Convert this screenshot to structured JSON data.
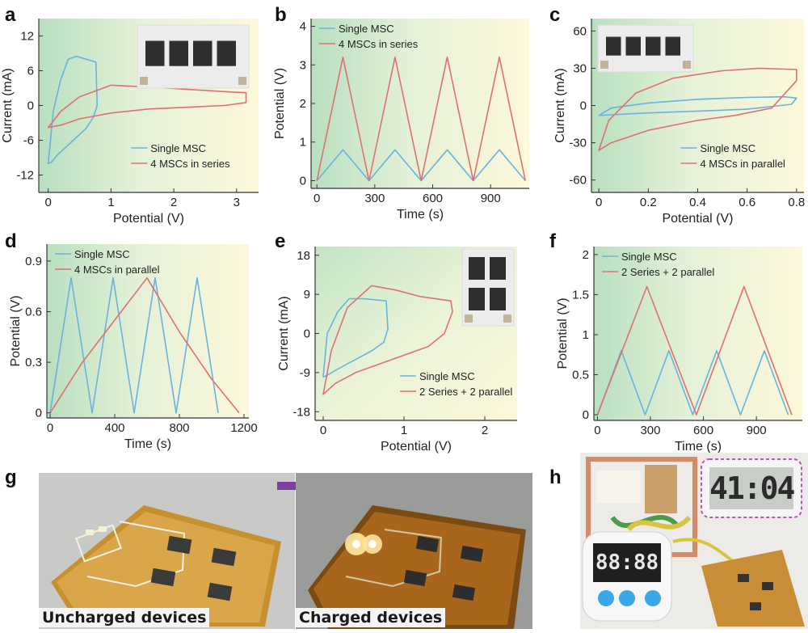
{
  "panel_letters": [
    "a",
    "b",
    "c",
    "d",
    "e",
    "f",
    "g",
    "h"
  ],
  "colors": {
    "single": "#69b3dd",
    "multi": "#e07070",
    "bg_green": "#cfe8d0",
    "bg_yellow": "#fbf6d6"
  },
  "chart_data": [
    {
      "id": "a",
      "type": "line",
      "xlabel": "Potential (V)",
      "ylabel": "Current (mA)",
      "xlim": [
        -0.15,
        3.35
      ],
      "ylim": [
        -15,
        15
      ],
      "xticks": [
        0,
        1,
        2,
        3
      ],
      "yticks": [
        -12,
        -6,
        0,
        6,
        12
      ],
      "legend": "bottom-right",
      "series": [
        {
          "name": "Single MSC",
          "color": "#69b3dd",
          "closed": true,
          "x": [
            0,
            0.08,
            0.2,
            0.32,
            0.45,
            0.6,
            0.76,
            0.78,
            0.72,
            0.6,
            0.45,
            0.3,
            0.15,
            0.05,
            0
          ],
          "y": [
            -10,
            -1,
            4.5,
            8,
            8.5,
            8,
            7.5,
            0,
            -2,
            -4,
            -5.5,
            -7,
            -8.5,
            -9.8,
            -10
          ]
        },
        {
          "name": "4 MSCs in series",
          "color": "#e07070",
          "closed": true,
          "x": [
            0,
            0.2,
            0.5,
            1.0,
            1.6,
            2.2,
            2.8,
            3.15,
            3.15,
            2.8,
            2.2,
            1.6,
            1.0,
            0.5,
            0.2,
            0
          ],
          "y": [
            -3.8,
            -1,
            1.5,
            3.5,
            3.2,
            2.8,
            2.4,
            2.2,
            0.5,
            0,
            -0.3,
            -0.6,
            -1.3,
            -2.3,
            -3.4,
            -3.8
          ]
        }
      ]
    },
    {
      "id": "b",
      "type": "line",
      "xlabel": "Time (s)",
      "ylabel": "Potential (V)",
      "xlim": [
        -30,
        1100
      ],
      "ylim": [
        -0.2,
        4.2
      ],
      "xticks": [
        0,
        300,
        600,
        900
      ],
      "yticks": [
        0,
        1,
        2,
        3,
        4
      ],
      "legend": "top-left",
      "series": [
        {
          "name": "Single MSC",
          "color": "#69b3dd",
          "x": [
            0,
            135,
            270,
            405,
            540,
            675,
            810,
            945,
            1080
          ],
          "y": [
            0,
            0.8,
            0,
            0.8,
            0,
            0.8,
            0,
            0.8,
            0
          ]
        },
        {
          "name": "4 MSCs in series",
          "color": "#e07070",
          "x": [
            0,
            135,
            270,
            405,
            540,
            675,
            810,
            945,
            1080
          ],
          "y": [
            0,
            3.2,
            0,
            3.2,
            0,
            3.2,
            0,
            3.2,
            0
          ]
        }
      ]
    },
    {
      "id": "c",
      "type": "line",
      "xlabel": "Potential (V)",
      "ylabel": "Current (mA)",
      "xlim": [
        -0.03,
        0.83
      ],
      "ylim": [
        -70,
        70
      ],
      "xticks": [
        0.0,
        0.2,
        0.4,
        0.6,
        0.8
      ],
      "yticks": [
        -60,
        -30,
        0,
        30,
        60
      ],
      "legend": "bottom-right",
      "series": [
        {
          "name": "Single MSC",
          "color": "#69b3dd",
          "closed": true,
          "x": [
            0,
            0.05,
            0.2,
            0.4,
            0.6,
            0.75,
            0.8,
            0.78,
            0.6,
            0.4,
            0.2,
            0.05,
            0
          ],
          "y": [
            -8,
            -2,
            2,
            5,
            6.5,
            7,
            6,
            1,
            -3,
            -4.5,
            -6,
            -7.5,
            -8
          ]
        },
        {
          "name": "4 MSCs in parallel",
          "color": "#e07070",
          "closed": true,
          "x": [
            0,
            0.04,
            0.15,
            0.3,
            0.5,
            0.65,
            0.8,
            0.8,
            0.7,
            0.55,
            0.4,
            0.2,
            0.05,
            0
          ],
          "y": [
            -36,
            -12,
            10,
            22,
            28,
            30,
            29,
            20,
            -2,
            -8,
            -12,
            -20,
            -30,
            -36
          ]
        }
      ]
    },
    {
      "id": "d",
      "type": "line",
      "xlabel": "Time (s)",
      "ylabel": "Potential (V)",
      "xlim": [
        -20,
        1230
      ],
      "ylim": [
        -0.03,
        1.0
      ],
      "xticks": [
        0,
        400,
        800,
        1200
      ],
      "yticks": [
        0.0,
        0.3,
        0.6,
        0.9
      ],
      "legend": "top-left",
      "series": [
        {
          "name": "Single MSC",
          "color": "#69b3dd",
          "x": [
            0,
            130,
            260,
            390,
            520,
            650,
            780,
            910,
            1040
          ],
          "y": [
            0,
            0.8,
            0,
            0.8,
            0,
            0.8,
            0,
            0.8,
            0
          ]
        },
        {
          "name": "4 MSCs in parallel",
          "color": "#e07070",
          "x": [
            0,
            200,
            400,
            600,
            800,
            1000,
            1170
          ],
          "y": [
            0,
            0.3,
            0.55,
            0.8,
            0.48,
            0.2,
            0
          ]
        }
      ]
    },
    {
      "id": "e",
      "type": "line",
      "xlabel": "Potential (V)",
      "ylabel": "Current (mA)",
      "xlim": [
        -0.1,
        2.4
      ],
      "ylim": [
        -20,
        20
      ],
      "xticks": [
        0,
        1,
        2
      ],
      "yticks": [
        -18,
        -9,
        0,
        9,
        18
      ],
      "legend": "bottom-right",
      "series": [
        {
          "name": "Single MSC",
          "color": "#69b3dd",
          "closed": true,
          "x": [
            0,
            0.05,
            0.18,
            0.32,
            0.5,
            0.78,
            0.8,
            0.75,
            0.6,
            0.45,
            0.3,
            0.15,
            0.03,
            0
          ],
          "y": [
            -10,
            0,
            5,
            8,
            8,
            7.5,
            1,
            -2,
            -4,
            -5.5,
            -7,
            -8.5,
            -9.8,
            -10
          ]
        },
        {
          "name": "2 Series + 2 parallel",
          "color": "#e07070",
          "closed": true,
          "x": [
            0,
            0.1,
            0.3,
            0.6,
            0.9,
            1.2,
            1.58,
            1.6,
            1.5,
            1.3,
            1.0,
            0.7,
            0.4,
            0.15,
            0
          ],
          "y": [
            -14,
            -4,
            6,
            11,
            10,
            8.5,
            7.5,
            5,
            0,
            -3,
            -5,
            -7,
            -9,
            -11.5,
            -14
          ]
        }
      ]
    },
    {
      "id": "f",
      "type": "line",
      "xlabel": "Time (s)",
      "ylabel": "Potential (V)",
      "xlim": [
        -20,
        1160
      ],
      "ylim": [
        -0.07,
        2.1
      ],
      "xticks": [
        0,
        300,
        600,
        900
      ],
      "yticks": [
        0.0,
        0.5,
        1.0,
        1.5,
        2.0
      ],
      "legend": "top-left",
      "series": [
        {
          "name": "Single MSC",
          "color": "#69b3dd",
          "x": [
            0,
            135,
            270,
            405,
            540,
            675,
            810,
            945,
            1080
          ],
          "y": [
            0,
            0.8,
            0,
            0.8,
            0,
            0.8,
            0,
            0.8,
            0
          ]
        },
        {
          "name": "2 Series + 2 parallel",
          "color": "#e07070",
          "x": [
            0,
            280,
            560,
            830,
            1100
          ],
          "y": [
            0,
            1.6,
            0,
            1.6,
            0
          ]
        }
      ]
    }
  ],
  "photos": {
    "g_left_caption": "Uncharged devices",
    "g_right_caption": "Charged devices",
    "h_timer_display": "41:04",
    "h_clock_display": "88:88"
  }
}
